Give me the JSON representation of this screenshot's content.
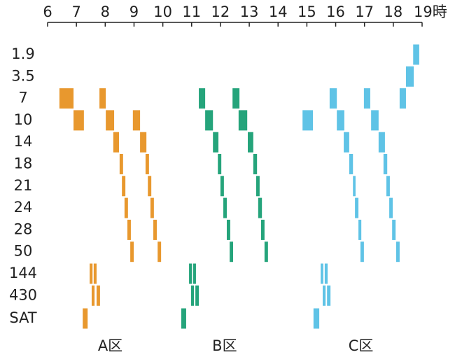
{
  "chart_data": {
    "type": "timeline",
    "categories": [
      "1.9",
      "3.5",
      "7",
      "10",
      "14",
      "18",
      "21",
      "24",
      "28",
      "50",
      "144",
      "430",
      "SAT"
    ],
    "xlim": [
      6,
      19
    ],
    "xticks": [
      6,
      7,
      8,
      9,
      10,
      11,
      12,
      13,
      14,
      15,
      16,
      17,
      18,
      {
        "value": 19,
        "label": "19時"
      }
    ],
    "series": [
      {
        "name": "A区",
        "color": "#e8982e",
        "bars": [
          {
            "row": "7",
            "start": 6.41,
            "end": 6.9
          },
          {
            "row": "7",
            "start": 7.8,
            "end": 8.02
          },
          {
            "row": "10",
            "start": 6.9,
            "end": 7.26
          },
          {
            "row": "10",
            "start": 8.02,
            "end": 8.31
          },
          {
            "row": "10",
            "start": 8.96,
            "end": 9.21
          },
          {
            "row": "14",
            "start": 8.28,
            "end": 8.48
          },
          {
            "row": "14",
            "start": 9.21,
            "end": 9.43
          },
          {
            "row": "18",
            "start": 8.5,
            "end": 8.62
          },
          {
            "row": "18",
            "start": 9.4,
            "end": 9.52
          },
          {
            "row": "21",
            "start": 8.58,
            "end": 8.7
          },
          {
            "row": "21",
            "start": 9.48,
            "end": 9.6
          },
          {
            "row": "24",
            "start": 8.67,
            "end": 8.79
          },
          {
            "row": "24",
            "start": 9.57,
            "end": 9.69
          },
          {
            "row": "28",
            "start": 8.77,
            "end": 8.89
          },
          {
            "row": "28",
            "start": 9.67,
            "end": 9.79
          },
          {
            "row": "50",
            "start": 8.87,
            "end": 8.99
          },
          {
            "row": "50",
            "start": 9.82,
            "end": 9.94
          },
          {
            "row": "144",
            "start": 7.46,
            "end": 7.56
          },
          {
            "row": "144",
            "start": 7.6,
            "end": 7.7
          },
          {
            "row": "430",
            "start": 7.53,
            "end": 7.63
          },
          {
            "row": "430",
            "start": 7.7,
            "end": 7.82
          },
          {
            "row": "SAT",
            "start": 7.22,
            "end": 7.39
          }
        ]
      },
      {
        "name": "B区",
        "color": "#25a47b",
        "bars": [
          {
            "row": "7",
            "start": 11.25,
            "end": 11.47
          },
          {
            "row": "7",
            "start": 12.42,
            "end": 12.66
          },
          {
            "row": "10",
            "start": 11.47,
            "end": 11.74
          },
          {
            "row": "10",
            "start": 12.63,
            "end": 12.93
          },
          {
            "row": "14",
            "start": 11.74,
            "end": 11.93
          },
          {
            "row": "14",
            "start": 12.95,
            "end": 13.14
          },
          {
            "row": "18",
            "start": 11.91,
            "end": 12.03
          },
          {
            "row": "18",
            "start": 13.14,
            "end": 13.27
          },
          {
            "row": "21",
            "start": 12.0,
            "end": 12.12
          },
          {
            "row": "21",
            "start": 13.24,
            "end": 13.36
          },
          {
            "row": "24",
            "start": 12.1,
            "end": 12.22
          },
          {
            "row": "24",
            "start": 13.31,
            "end": 13.44
          },
          {
            "row": "28",
            "start": 12.22,
            "end": 12.34
          },
          {
            "row": "28",
            "start": 13.41,
            "end": 13.53
          },
          {
            "row": "50",
            "start": 12.32,
            "end": 12.44
          },
          {
            "row": "50",
            "start": 13.53,
            "end": 13.65
          },
          {
            "row": "144",
            "start": 10.91,
            "end": 11.01
          },
          {
            "row": "144",
            "start": 11.05,
            "end": 11.15
          },
          {
            "row": "430",
            "start": 10.98,
            "end": 11.08
          },
          {
            "row": "430",
            "start": 11.13,
            "end": 11.25
          },
          {
            "row": "SAT",
            "start": 10.64,
            "end": 10.81
          }
        ]
      },
      {
        "name": "C区",
        "color": "#5fc3e6",
        "bars": [
          {
            "row": "1.9",
            "start": 18.69,
            "end": 18.9
          },
          {
            "row": "3.5",
            "start": 18.44,
            "end": 18.71
          },
          {
            "row": "7",
            "start": 15.79,
            "end": 16.04
          },
          {
            "row": "7",
            "start": 16.98,
            "end": 17.2
          },
          {
            "row": "7",
            "start": 18.22,
            "end": 18.44
          },
          {
            "row": "10",
            "start": 14.85,
            "end": 15.21
          },
          {
            "row": "10",
            "start": 16.04,
            "end": 16.3
          },
          {
            "row": "10",
            "start": 17.23,
            "end": 17.49
          },
          {
            "row": "14",
            "start": 16.28,
            "end": 16.47
          },
          {
            "row": "14",
            "start": 17.49,
            "end": 17.71
          },
          {
            "row": "18",
            "start": 16.47,
            "end": 16.6
          },
          {
            "row": "18",
            "start": 17.66,
            "end": 17.79
          },
          {
            "row": "21",
            "start": 16.6,
            "end": 16.69
          },
          {
            "row": "21",
            "start": 17.76,
            "end": 17.88
          },
          {
            "row": "24",
            "start": 16.67,
            "end": 16.79
          },
          {
            "row": "24",
            "start": 17.86,
            "end": 17.98
          },
          {
            "row": "28",
            "start": 16.79,
            "end": 16.89
          },
          {
            "row": "28",
            "start": 17.96,
            "end": 18.08
          },
          {
            "row": "50",
            "start": 16.86,
            "end": 16.98
          },
          {
            "row": "50",
            "start": 18.1,
            "end": 18.22
          },
          {
            "row": "144",
            "start": 15.48,
            "end": 15.57
          },
          {
            "row": "144",
            "start": 15.62,
            "end": 15.72
          },
          {
            "row": "430",
            "start": 15.55,
            "end": 15.65
          },
          {
            "row": "430",
            "start": 15.7,
            "end": 15.82
          },
          {
            "row": "SAT",
            "start": 15.23,
            "end": 15.43
          }
        ]
      }
    ]
  }
}
